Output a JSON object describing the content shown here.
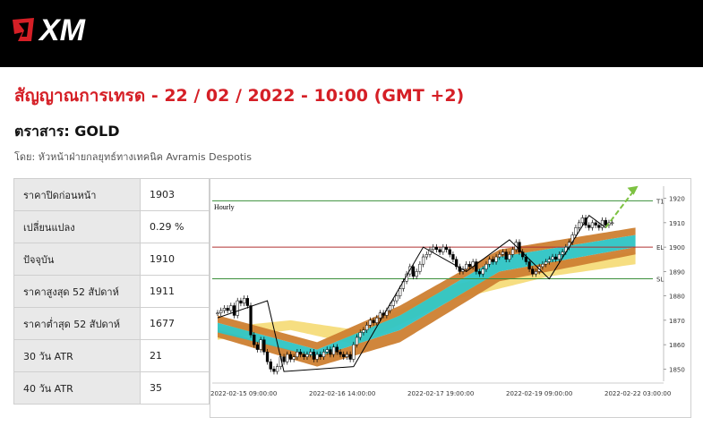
{
  "brand": {
    "name": "XM"
  },
  "title": "สัญญาณการเทรด - 22 / 02 / 2022 - 10:00 (GMT +2)",
  "instrument_line": "ตราสาร: GOLD",
  "author_line": "โดย: หัวหน้าฝ่ายกลยุทธ์ทางเทคนิค Avramis Despotis",
  "stats": [
    {
      "label": "ราคาปิดก่อนหน้า",
      "value": "1903"
    },
    {
      "label": "เปลี่ยนแปลง",
      "value": "0.29 %"
    },
    {
      "label": "ปัจจุบัน",
      "value": "1910"
    },
    {
      "label": "ราคาสูงสุด 52 สัปดาห์",
      "value": "1911"
    },
    {
      "label": "ราคาต่ำสุด 52 สัปดาห์",
      "value": "1677"
    },
    {
      "label": "30 วัน ATR",
      "value": "21"
    },
    {
      "label": "40 วัน ATR",
      "value": "35"
    }
  ],
  "colors": {
    "brand_red": "#d51f26",
    "up_candle": "#ffffff",
    "down_candle": "#000000",
    "level_green": "#3a8f3a",
    "level_red": "#b03030",
    "band_orange": "#cd7f32",
    "band_teal": "#2ec4c4",
    "band_yellow": "#f5dc7a",
    "arrow_green": "#7dc242"
  },
  "chart_data": {
    "type": "line",
    "title": "Hourly",
    "x_tick_labels": [
      "2022-02-15 09:00:00",
      "2022-02-16 14:00:00",
      "2022-02-17 19:00:00",
      "2022-02-19 09:00:00",
      "2022-02-22 03:00:00"
    ],
    "y_ticks": [
      1850,
      1860,
      1870,
      1880,
      1890,
      1900,
      1910,
      1920
    ],
    "ylim": [
      1845,
      1925
    ],
    "levels": [
      {
        "label": "T1",
        "value": 1919
      },
      {
        "label": "EL",
        "value": 1900
      },
      {
        "label": "SL",
        "value": 1887
      }
    ],
    "close_prices": [
      1873,
      1874,
      1875,
      1874,
      1876,
      1872,
      1878,
      1877,
      1879,
      1876,
      1864,
      1860,
      1858,
      1862,
      1857,
      1853,
      1850,
      1849,
      1851,
      1855,
      1853,
      1856,
      1854,
      1855,
      1857,
      1856,
      1855,
      1856,
      1857,
      1854,
      1856,
      1855,
      1857,
      1858,
      1856,
      1859,
      1857,
      1856,
      1855,
      1856,
      1854,
      1860,
      1863,
      1865,
      1866,
      1868,
      1870,
      1869,
      1871,
      1873,
      1872,
      1874,
      1876,
      1878,
      1880,
      1883,
      1886,
      1889,
      1892,
      1888,
      1890,
      1893,
      1896,
      1897,
      1899,
      1900,
      1899,
      1898,
      1900,
      1899,
      1897,
      1895,
      1892,
      1890,
      1891,
      1893,
      1892,
      1894,
      1890,
      1889,
      1891,
      1893,
      1895,
      1894,
      1896,
      1897,
      1898,
      1895,
      1897,
      1899,
      1902,
      1898,
      1896,
      1894,
      1891,
      1889,
      1890,
      1892,
      1893,
      1894,
      1895,
      1896,
      1895,
      1897,
      1898,
      1900,
      1902,
      1905,
      1908,
      1910,
      1912,
      1909,
      1908,
      1910,
      1909,
      1908,
      1911,
      1909,
      1910,
      1910
    ],
    "zigzag": [
      [
        0,
        1871
      ],
      [
        15,
        1878
      ],
      [
        20,
        1849
      ],
      [
        41,
        1851
      ],
      [
        62,
        1900
      ],
      [
        75,
        1890
      ],
      [
        88,
        1903
      ],
      [
        100,
        1887
      ],
      [
        112,
        1913
      ],
      [
        117,
        1908
      ]
    ],
    "projection": [
      [
        117,
        1908
      ],
      [
        126,
        1924
      ]
    ],
    "bands": [
      {
        "name": "outer-lower",
        "color": "band_yellow",
        "lower": [
          [
            0,
            1862
          ],
          [
            22,
            1866
          ],
          [
            42,
            1860
          ],
          [
            70,
            1878
          ],
          [
            100,
            1888
          ],
          [
            126,
            1893
          ]
        ],
        "upper": [
          [
            0,
            1867
          ],
          [
            22,
            1870
          ],
          [
            42,
            1866
          ],
          [
            70,
            1884
          ],
          [
            100,
            1894
          ],
          [
            126,
            1898
          ]
        ]
      },
      {
        "name": "orange-lower",
        "color": "band_orange",
        "lower": [
          [
            0,
            1863
          ],
          [
            30,
            1851
          ],
          [
            55,
            1861
          ],
          [
            85,
            1886
          ],
          [
            126,
            1897
          ]
        ],
        "upper": [
          [
            0,
            1866
          ],
          [
            30,
            1855
          ],
          [
            55,
            1866
          ],
          [
            85,
            1890
          ],
          [
            126,
            1900
          ]
        ]
      },
      {
        "name": "teal",
        "color": "band_teal",
        "lower": [
          [
            0,
            1865
          ],
          [
            30,
            1855
          ],
          [
            55,
            1866
          ],
          [
            85,
            1890
          ],
          [
            126,
            1900
          ]
        ],
        "upper": [
          [
            0,
            1869
          ],
          [
            30,
            1858
          ],
          [
            55,
            1872
          ],
          [
            85,
            1896
          ],
          [
            126,
            1905
          ]
        ]
      },
      {
        "name": "orange-upper",
        "color": "band_orange",
        "lower": [
          [
            0,
            1869
          ],
          [
            30,
            1858
          ],
          [
            55,
            1872
          ],
          [
            85,
            1896
          ],
          [
            126,
            1905
          ]
        ],
        "upper": [
          [
            0,
            1872
          ],
          [
            30,
            1861
          ],
          [
            55,
            1876
          ],
          [
            85,
            1899
          ],
          [
            126,
            1908
          ]
        ]
      }
    ]
  }
}
